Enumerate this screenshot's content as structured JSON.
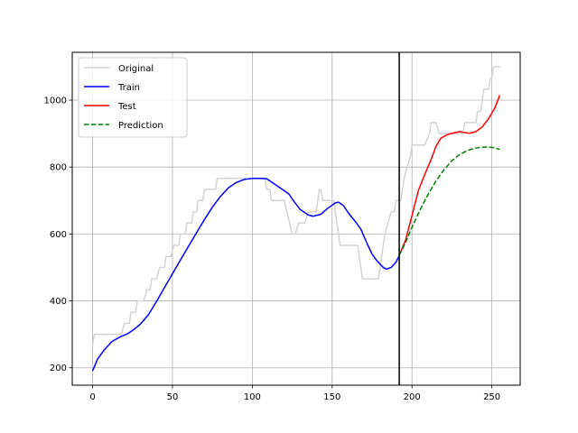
{
  "chart_data": {
    "type": "line",
    "title": "",
    "xlabel": "",
    "ylabel": "",
    "xlim": [
      -12.75,
      267.75
    ],
    "ylim": [
      148,
      1143
    ],
    "grid": true,
    "legend_position": "top-left",
    "xticks": [
      0,
      50,
      100,
      150,
      200,
      250
    ],
    "yticks": [
      200,
      400,
      600,
      800,
      1000
    ],
    "split_x": 192,
    "series": [
      {
        "name": "Original",
        "color": "#d3d3d3",
        "dash": "solid",
        "points": [
          [
            0,
            266
          ],
          [
            1,
            300
          ],
          [
            18,
            300
          ],
          [
            20,
            333
          ],
          [
            23,
            333
          ],
          [
            24,
            366
          ],
          [
            27,
            366
          ],
          [
            28,
            400
          ],
          [
            32,
            400
          ],
          [
            34,
            433
          ],
          [
            36,
            433
          ],
          [
            37,
            466
          ],
          [
            40,
            466
          ],
          [
            42,
            500
          ],
          [
            45,
            500
          ],
          [
            46,
            533
          ],
          [
            49,
            533
          ],
          [
            51,
            566
          ],
          [
            54,
            566
          ],
          [
            55,
            600
          ],
          [
            58,
            600
          ],
          [
            59,
            633
          ],
          [
            62,
            633
          ],
          [
            63,
            666
          ],
          [
            65,
            666
          ],
          [
            66,
            700
          ],
          [
            69,
            700
          ],
          [
            70,
            733
          ],
          [
            77,
            733
          ],
          [
            78,
            766
          ],
          [
            108,
            766
          ],
          [
            109,
            733
          ],
          [
            111,
            733
          ],
          [
            112,
            700
          ],
          [
            120,
            700
          ],
          [
            125,
            600
          ],
          [
            127,
            600
          ],
          [
            129,
            633
          ],
          [
            133,
            633
          ],
          [
            135,
            666
          ],
          [
            140,
            666
          ],
          [
            141,
            700
          ],
          [
            142,
            733
          ],
          [
            143,
            733
          ],
          [
            144,
            700
          ],
          [
            151,
            700
          ],
          [
            155,
            566
          ],
          [
            166,
            566
          ],
          [
            169,
            466
          ],
          [
            179,
            466
          ],
          [
            180,
            500
          ],
          [
            183,
            600
          ],
          [
            185,
            633
          ],
          [
            187,
            666
          ],
          [
            189,
            666
          ],
          [
            190,
            700
          ],
          [
            193,
            700
          ],
          [
            195,
            766
          ],
          [
            197,
            800
          ],
          [
            199,
            833
          ],
          [
            200,
            866
          ],
          [
            208,
            866
          ],
          [
            211,
            900
          ],
          [
            212,
            933
          ],
          [
            215,
            933
          ],
          [
            217,
            900
          ],
          [
            232,
            900
          ],
          [
            233,
            933
          ],
          [
            240,
            933
          ],
          [
            241,
            966
          ],
          [
            243,
            966
          ],
          [
            244,
            1000
          ],
          [
            245,
            1033
          ],
          [
            248,
            1033
          ],
          [
            249,
            1066
          ],
          [
            250,
            1066
          ],
          [
            251,
            1100
          ],
          [
            255,
            1100
          ]
        ]
      },
      {
        "name": "Train",
        "color": "#0000ff",
        "dash": "solid",
        "points": [
          [
            0,
            191
          ],
          [
            3,
            225
          ],
          [
            7,
            252
          ],
          [
            12,
            278
          ],
          [
            17,
            292
          ],
          [
            22,
            302
          ],
          [
            26,
            315
          ],
          [
            30,
            331
          ],
          [
            35,
            359
          ],
          [
            40,
            398
          ],
          [
            45,
            440
          ],
          [
            50,
            481
          ],
          [
            55,
            522
          ],
          [
            60,
            563
          ],
          [
            65,
            603
          ],
          [
            70,
            643
          ],
          [
            75,
            680
          ],
          [
            80,
            712
          ],
          [
            85,
            738
          ],
          [
            90,
            754
          ],
          [
            95,
            763
          ],
          [
            100,
            766
          ],
          [
            105,
            766
          ],
          [
            109,
            765
          ],
          [
            113,
            752
          ],
          [
            118,
            736
          ],
          [
            123,
            719
          ],
          [
            126,
            698
          ],
          [
            130,
            673
          ],
          [
            135,
            657
          ],
          [
            138,
            653
          ],
          [
            143,
            659
          ],
          [
            147,
            676
          ],
          [
            152,
            693
          ],
          [
            154,
            695
          ],
          [
            157,
            685
          ],
          [
            160,
            664
          ],
          [
            165,
            634
          ],
          [
            168,
            614
          ],
          [
            172,
            570
          ],
          [
            175,
            540
          ],
          [
            178,
            520
          ],
          [
            182,
            500
          ],
          [
            184,
            495
          ],
          [
            187,
            500
          ],
          [
            190,
            516
          ],
          [
            192,
            535
          ]
        ]
      },
      {
        "name": "Test",
        "color": "#ff0000",
        "dash": "solid",
        "points": [
          [
            192,
            536
          ],
          [
            196,
            582
          ],
          [
            200,
            655
          ],
          [
            204,
            730
          ],
          [
            208,
            778
          ],
          [
            212,
            823
          ],
          [
            215,
            862
          ],
          [
            218,
            886
          ],
          [
            222,
            897
          ],
          [
            226,
            902
          ],
          [
            230,
            906
          ],
          [
            233,
            903
          ],
          [
            236,
            901
          ],
          [
            240,
            906
          ],
          [
            244,
            920
          ],
          [
            248,
            945
          ],
          [
            252,
            978
          ],
          [
            255,
            1015
          ]
        ]
      },
      {
        "name": "Prediction",
        "color": "#008000",
        "dash": "dashed",
        "points": [
          [
            192,
            536
          ],
          [
            196,
            575
          ],
          [
            200,
            620
          ],
          [
            205,
            672
          ],
          [
            210,
            718
          ],
          [
            215,
            758
          ],
          [
            220,
            792
          ],
          [
            225,
            819
          ],
          [
            230,
            838
          ],
          [
            235,
            850
          ],
          [
            240,
            857
          ],
          [
            245,
            860
          ],
          [
            250,
            859
          ],
          [
            255,
            853
          ]
        ]
      }
    ]
  }
}
